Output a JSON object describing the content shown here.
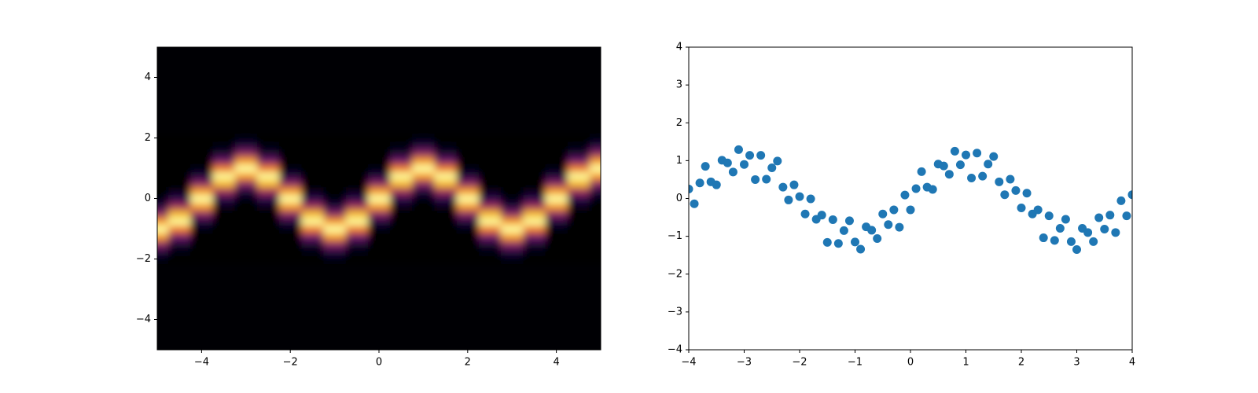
{
  "chart_data": [
    {
      "type": "heatmap",
      "colormap": "inferno",
      "x": [
        -5,
        -4.5,
        -4,
        -3.5,
        -3,
        -2.5,
        -2,
        -1.5,
        -1,
        -0.5,
        0,
        0.5,
        1,
        1.5,
        2,
        2.5,
        3,
        3.5,
        4,
        4.5,
        5
      ],
      "y": [
        -2,
        -1.75,
        -1.5,
        -1.25,
        -1,
        -0.75,
        -0.5,
        -0.25,
        0,
        0.25,
        0.5,
        0.75,
        1,
        1.25,
        1.5,
        1.75,
        2
      ],
      "z": [
        [
          0.02,
          0,
          0,
          0,
          0,
          0,
          0,
          0,
          0.02,
          0,
          0,
          0,
          0,
          0,
          0,
          0,
          0.02,
          0,
          0,
          0,
          0
        ],
        [
          0.11,
          0.01,
          0,
          0,
          0,
          0,
          0,
          0.01,
          0.11,
          0.01,
          0,
          0,
          0,
          0,
          0,
          0.01,
          0.11,
          0.01,
          0,
          0,
          0
        ],
        [
          0.37,
          0.08,
          0,
          0,
          0,
          0,
          0,
          0.08,
          0.37,
          0.08,
          0,
          0,
          0,
          0,
          0,
          0.08,
          0.37,
          0.08,
          0,
          0,
          0
        ],
        [
          0.78,
          0.31,
          0,
          0,
          0,
          0,
          0,
          0.31,
          0.78,
          0.31,
          0,
          0,
          0,
          0,
          0,
          0.31,
          0.78,
          0.31,
          0,
          0,
          0
        ],
        [
          1,
          0.71,
          0.02,
          0,
          0,
          0,
          0.02,
          0.71,
          1,
          0.71,
          0.02,
          0,
          0,
          0,
          0.02,
          0.71,
          1,
          0.71,
          0.02,
          0,
          0
        ],
        [
          0.78,
          0.99,
          0.11,
          0,
          0,
          0,
          0.11,
          0.99,
          0.78,
          0.99,
          0.11,
          0,
          0,
          0,
          0.11,
          0.99,
          0.78,
          0.99,
          0.11,
          0,
          0
        ],
        [
          0.37,
          0.84,
          0.37,
          0,
          0,
          0,
          0.37,
          0.84,
          0.37,
          0.84,
          0.37,
          0,
          0,
          0,
          0.37,
          0.84,
          0.37,
          0.84,
          0.37,
          0,
          0
        ],
        [
          0.11,
          0.43,
          0.78,
          0.03,
          0,
          0.03,
          0.78,
          0.43,
          0.11,
          0.43,
          0.78,
          0.03,
          0,
          0.03,
          0.78,
          0.43,
          0.11,
          0.43,
          0.78,
          0.03,
          0
        ],
        [
          0.02,
          0.14,
          1,
          0.14,
          0.02,
          0.14,
          1,
          0.14,
          0.02,
          0.14,
          1,
          0.14,
          0.02,
          0.14,
          1,
          0.14,
          0.02,
          0.14,
          1,
          0.14,
          0.02
        ],
        [
          0,
          0.03,
          0.78,
          0.43,
          0.11,
          0.43,
          0.78,
          0.03,
          0,
          0.03,
          0.78,
          0.43,
          0.11,
          0.43,
          0.78,
          0.03,
          0,
          0.03,
          0.78,
          0.43,
          0.11
        ],
        [
          0,
          0,
          0.37,
          0.84,
          0.37,
          0.84,
          0.37,
          0,
          0,
          0,
          0.37,
          0.84,
          0.37,
          0.84,
          0.37,
          0,
          0,
          0,
          0.37,
          0.84,
          0.37
        ],
        [
          0,
          0,
          0.11,
          0.99,
          0.78,
          0.99,
          0.11,
          0,
          0,
          0,
          0.11,
          0.99,
          0.78,
          0.99,
          0.11,
          0,
          0,
          0,
          0.11,
          0.99,
          0.78
        ],
        [
          0,
          0,
          0.02,
          0.71,
          1,
          0.71,
          0.02,
          0,
          0,
          0,
          0.02,
          0.71,
          1,
          0.71,
          0.02,
          0,
          0,
          0,
          0.02,
          0.71,
          1
        ],
        [
          0,
          0,
          0,
          0.31,
          0.78,
          0.31,
          0,
          0,
          0,
          0,
          0,
          0.31,
          0.78,
          0.31,
          0,
          0,
          0,
          0,
          0,
          0.31,
          0.78
        ],
        [
          0,
          0,
          0,
          0.08,
          0.37,
          0.08,
          0,
          0,
          0,
          0,
          0,
          0.08,
          0.37,
          0.08,
          0,
          0,
          0,
          0,
          0,
          0.08,
          0.37
        ],
        [
          0,
          0,
          0,
          0.01,
          0.11,
          0.01,
          0,
          0,
          0,
          0,
          0,
          0.01,
          0.11,
          0.01,
          0,
          0,
          0,
          0,
          0,
          0.01,
          0.11
        ],
        [
          0,
          0,
          0,
          0,
          0.02,
          0,
          0,
          0,
          0,
          0,
          0,
          0,
          0.02,
          0,
          0,
          0,
          0,
          0,
          0,
          0,
          0.02
        ]
      ],
      "xlim": [
        -5,
        5
      ],
      "ylim": [
        -5,
        5
      ],
      "xticks": [
        {
          "value": -4,
          "label": "−4"
        },
        {
          "value": -2,
          "label": "−2"
        },
        0,
        2,
        4
      ],
      "yticks": [
        {
          "value": -4,
          "label": "−4"
        },
        {
          "value": -2,
          "label": "−2"
        },
        0,
        2,
        4
      ]
    },
    {
      "type": "scatter",
      "color": "#1f77b4",
      "x": [
        -4,
        -3.9,
        -3.8,
        -3.7,
        -3.6,
        -3.5,
        -3.4,
        -3.3,
        -3.2,
        -3.1,
        -3,
        -2.9,
        -2.8,
        -2.7,
        -2.6,
        -2.5,
        -2.4,
        -2.3,
        -2.2,
        -2.1,
        -2,
        -1.9,
        -1.8,
        -1.7,
        -1.6,
        -1.5,
        -1.4,
        -1.3,
        -1.2,
        -1.1,
        -1,
        -0.9,
        -0.8,
        -0.7,
        -0.6,
        -0.5,
        -0.4,
        -0.3,
        -0.2,
        -0.1,
        0,
        0.1,
        0.2,
        0.3,
        0.4,
        0.5,
        0.6,
        0.7,
        0.8,
        0.9,
        1,
        1.1,
        1.2,
        1.3,
        1.4,
        1.5,
        1.6,
        1.7,
        1.8,
        1.9,
        2,
        2.1,
        2.2,
        2.3,
        2.4,
        2.5,
        2.6,
        2.7,
        2.8,
        2.9,
        3,
        3.1,
        3.2,
        3.3,
        3.4,
        3.5,
        3.6,
        3.7,
        3.8,
        3.9,
        4
      ],
      "y": [
        0.25,
        -0.14,
        0.41,
        0.85,
        0.44,
        0.36,
        1.01,
        0.94,
        0.7,
        1.29,
        0.9,
        1.14,
        0.5,
        1.14,
        0.51,
        0.81,
        0.99,
        0.3,
        -0.04,
        0.36,
        0.05,
        -0.41,
        -0.01,
        -0.55,
        -0.44,
        -1.16,
        -0.56,
        -1.19,
        -0.85,
        -0.59,
        -1.15,
        -1.34,
        -0.75,
        -0.84,
        -1.06,
        -0.41,
        -0.69,
        -0.3,
        -0.76,
        0.09,
        -0.3,
        0.26,
        0.71,
        0.3,
        0.24,
        0.91,
        0.86,
        0.64,
        1.25,
        0.89,
        1.15,
        0.54,
        1.2,
        0.59,
        0.91,
        1.11,
        0.44,
        0.1,
        0.51,
        0.21,
        -0.25,
        0.14,
        -0.41,
        -0.3,
        -1.04,
        -0.46,
        -1.11,
        -0.79,
        -0.55,
        -1.14,
        -1.35,
        -0.79,
        -0.9,
        -1.14,
        -0.51,
        -0.81,
        -0.44,
        -0.9,
        -0.06,
        -0.46,
        0.1
      ],
      "xlim": [
        -4,
        4
      ],
      "ylim": [
        -4,
        4
      ],
      "xticks": [
        {
          "value": -4,
          "label": "−4"
        },
        {
          "value": -3,
          "label": "−3"
        },
        {
          "value": -2,
          "label": "−2"
        },
        {
          "value": -1,
          "label": "−1"
        },
        0,
        1,
        2,
        3,
        4
      ],
      "yticks": [
        {
          "value": -4,
          "label": "−4"
        },
        {
          "value": -3,
          "label": "−3"
        },
        {
          "value": -2,
          "label": "−2"
        },
        {
          "value": -1,
          "label": "−1"
        },
        0,
        1,
        2,
        3,
        4
      ]
    }
  ]
}
